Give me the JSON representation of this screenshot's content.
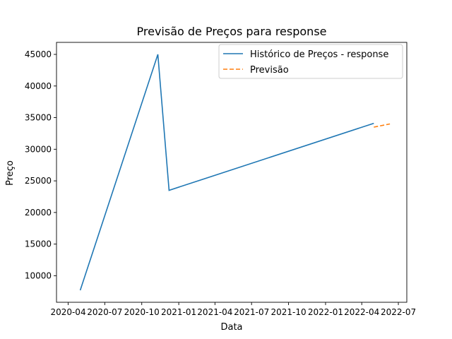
{
  "chart_data": {
    "type": "line",
    "title": "Previsão de Preços para response",
    "xlabel": "Data",
    "ylabel": "Preço",
    "legend_position": "top-right",
    "grid": false,
    "x_ticks": [
      "2020-04",
      "2020-07",
      "2020-10",
      "2021-01",
      "2021-04",
      "2021-07",
      "2021-10",
      "2022-01",
      "2022-04",
      "2022-07"
    ],
    "y_ticks": [
      10000,
      15000,
      20000,
      25000,
      30000,
      35000,
      40000,
      45000
    ],
    "xlim": [
      "2020-03-03",
      "2022-07-22"
    ],
    "ylim": [
      5800,
      46900
    ],
    "series": [
      {
        "name": "Histórico de Preços - response",
        "color": "#1f77b4",
        "style": "solid",
        "x": [
          "2020-05-01",
          "2020-11-10",
          "2020-12-08",
          "2022-05-01"
        ],
        "y": [
          7700,
          45000,
          23500,
          34100
        ]
      },
      {
        "name": "Previsão",
        "color": "#ff7f0e",
        "style": "dashed",
        "x": [
          "2022-05-01",
          "2022-06-10"
        ],
        "y": [
          33500,
          34000
        ]
      }
    ]
  }
}
